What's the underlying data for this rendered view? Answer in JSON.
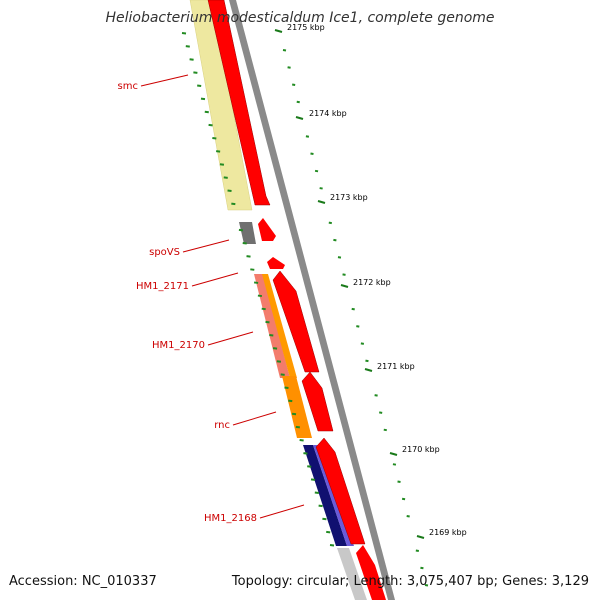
{
  "title": "Heliobacterium modesticaldum Ice1, complete genome",
  "accession": "Accession: NC_010337",
  "summary": "Topology: circular; Length: 3,075,407 bp; Genes: 3,129",
  "ticks": [
    {
      "label": "2175 kbp"
    },
    {
      "label": "2174 kbp"
    },
    {
      "label": "2173 kbp"
    },
    {
      "label": "2172 kbp"
    },
    {
      "label": "2171 kbp"
    },
    {
      "label": "2170 kbp"
    },
    {
      "label": "2169 kbp"
    }
  ],
  "genes": [
    {
      "name": "smc",
      "color": "#f0e68c"
    },
    {
      "name": "spoVS",
      "color": "#696969"
    },
    {
      "name": "HM1_2171",
      "color": "#ff0000"
    },
    {
      "name": "HM1_2170",
      "color": "#fa8072"
    },
    {
      "name": "rnc",
      "color": "#ff8c00"
    },
    {
      "name": "HM1_2168",
      "color": "#000080"
    }
  ],
  "colors": {
    "backbone": "#8c8c8c",
    "cds_strand": "#ff0000",
    "label": "#cc0000",
    "gc_ticks": "#228b22",
    "secondary_orange": "#ff9500",
    "secondary_blue": "#7b68ee",
    "secondary_gray": "#c8c8c8"
  }
}
